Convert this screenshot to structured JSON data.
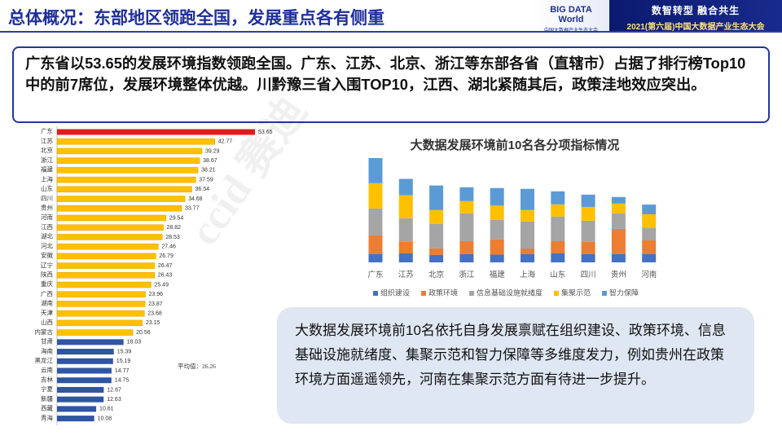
{
  "header": {
    "title": "总体概况：东部地区领跑全国，发展重点各有侧重",
    "logo": "BIG DATA World",
    "logo_subtitle": "中国大数据产业生态大会",
    "slogan": "数智转型 融合共生",
    "event": "2021(第六届)中国大数据产业生态大会"
  },
  "summary": "广东省以53.65的发展环境指数领跑全国。广东、江苏、北京、浙江等东部各省（直辖市）占据了排行榜Top10中的前7席位，发展环境整体优越。川黔豫三省入围TOP10，江西、湖北紧随其后，政策洼地效应突出。",
  "note": "大数据发展环境前10名依托自身发展禀赋在组织建设、政策环境、信息基础设施就绪度、集聚示范和智力保障等多维度发力，例如贵州在政策环境方面遥遥领先，河南在集聚示范方面有待进一步提升。",
  "watermark": "ccid 赛迪",
  "chart_data": [
    {
      "type": "bar",
      "orientation": "horizontal",
      "categories": [
        "广东",
        "江苏",
        "北京",
        "浙江",
        "福建",
        "上海",
        "山东",
        "四川",
        "贵州",
        "河南",
        "江西",
        "湖北",
        "河北",
        "安徽",
        "辽宁",
        "陕西",
        "重庆",
        "广西",
        "湖南",
        "天津",
        "山西",
        "内蒙古",
        "甘肃",
        "海南",
        "黑龙江",
        "云南",
        "吉林",
        "宁夏",
        "新疆",
        "西藏",
        "青海"
      ],
      "values": [
        53.65,
        42.77,
        39.29,
        38.67,
        38.21,
        37.59,
        36.54,
        34.68,
        33.77,
        29.54,
        28.82,
        28.53,
        27.46,
        26.79,
        26.47,
        26.43,
        25.49,
        23.96,
        23.87,
        23.68,
        23.15,
        20.56,
        18.03,
        15.39,
        15.19,
        14.77,
        14.75,
        12.67,
        12.63,
        10.61,
        10.08
      ],
      "colors": [
        "#e31a1c",
        "#ffc000",
        "#ffc000",
        "#ffc000",
        "#ffc000",
        "#ffc000",
        "#ffc000",
        "#ffc000",
        "#ffc000",
        "#ffc000",
        "#ffc000",
        "#ffc000",
        "#ffc000",
        "#ffc000",
        "#ffc000",
        "#ffc000",
        "#ffc000",
        "#ffc000",
        "#ffc000",
        "#ffc000",
        "#ffc000",
        "#ffc000",
        "#2f55a4",
        "#2f55a4",
        "#2f55a4",
        "#2f55a4",
        "#2f55a4",
        "#2f55a4",
        "#2f55a4",
        "#2f55a4",
        "#2f55a4"
      ],
      "annotation": "平均值：26.26"
    },
    {
      "type": "stacked_bar",
      "title": "大数据发展环境前10名各分项指标情况",
      "categories": [
        "广东",
        "江苏",
        "北京",
        "浙江",
        "福建",
        "上海",
        "山东",
        "四川",
        "贵州",
        "河南"
      ],
      "series": [
        {
          "name": "组织建设",
          "color": "#4472c4",
          "values": [
            4.2,
            4.6,
            3.8,
            4.2,
            4.0,
            4.2,
            4.6,
            4.2,
            4.2,
            4.2
          ]
        },
        {
          "name": "政策环境",
          "color": "#ed7d31",
          "values": [
            9.6,
            5.9,
            3.4,
            6.7,
            7.8,
            2.9,
            6.3,
            6.3,
            13.0,
            7.1
          ]
        },
        {
          "name": "信息基础设施就绪度",
          "color": "#a5a5a5",
          "values": [
            13.9,
            12.2,
            12.6,
            14.3,
            10.0,
            13.9,
            12.6,
            10.9,
            8.0,
            6.3
          ]
        },
        {
          "name": "集聚示范",
          "color": "#ffc000",
          "values": [
            13.0,
            11.8,
            7.1,
            6.3,
            7.4,
            5.9,
            6.3,
            7.1,
            5.0,
            7.1
          ]
        },
        {
          "name": "智力保障",
          "color": "#5b9bd5",
          "values": [
            12.9,
            8.4,
            12.6,
            7.1,
            9.0,
            10.9,
            6.7,
            6.3,
            3.4,
            5.0
          ]
        }
      ],
      "legend": "bottom"
    }
  ]
}
